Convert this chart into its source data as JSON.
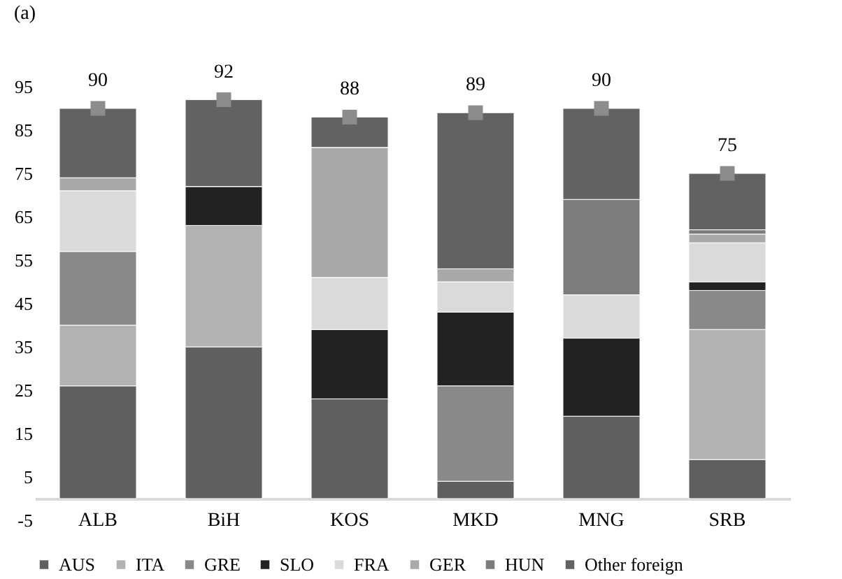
{
  "chart_data": {
    "type": "bar",
    "title": "(a)",
    "stacked": true,
    "categories": [
      "ALB",
      "BiH",
      "KOS",
      "MKD",
      "MNG",
      "SRB"
    ],
    "series": [
      {
        "name": "AUS",
        "color": "#5f5f5f",
        "values": [
          26,
          35,
          23,
          4,
          19,
          9
        ]
      },
      {
        "name": "ITA",
        "color": "#b2b2b2",
        "values": [
          14,
          28,
          0,
          0,
          0,
          30
        ]
      },
      {
        "name": "GRE",
        "color": "#898989",
        "values": [
          17,
          0,
          0,
          22,
          0,
          9
        ]
      },
      {
        "name": "SLO",
        "color": "#222222",
        "values": [
          0,
          9,
          16,
          17,
          18,
          2
        ]
      },
      {
        "name": "FRA",
        "color": "#dadada",
        "values": [
          14,
          0,
          12,
          7,
          10,
          9
        ]
      },
      {
        "name": "GER",
        "color": "#a9a9a9",
        "values": [
          3,
          0,
          30,
          3,
          0,
          2
        ]
      },
      {
        "name": "HUN",
        "color": "#7c7c7c",
        "values": [
          0,
          0,
          0,
          0,
          22,
          1
        ]
      },
      {
        "name": "Other foreign",
        "color": "#626262",
        "values": [
          16,
          20,
          7,
          36,
          21,
          13
        ]
      },
      {
        "type": "scatter",
        "marker": "square",
        "color": "#8c8c8c",
        "values": [
          90,
          92,
          88,
          89,
          90,
          75
        ]
      }
    ],
    "totals": [
      "90",
      "92",
      "88",
      "89",
      "90",
      "75"
    ],
    "ylim": [
      -5,
      95
    ],
    "yticks": [
      -5,
      5,
      15,
      25,
      35,
      45,
      55,
      65,
      75,
      85,
      95
    ],
    "grid": false,
    "legend": "bottom"
  }
}
